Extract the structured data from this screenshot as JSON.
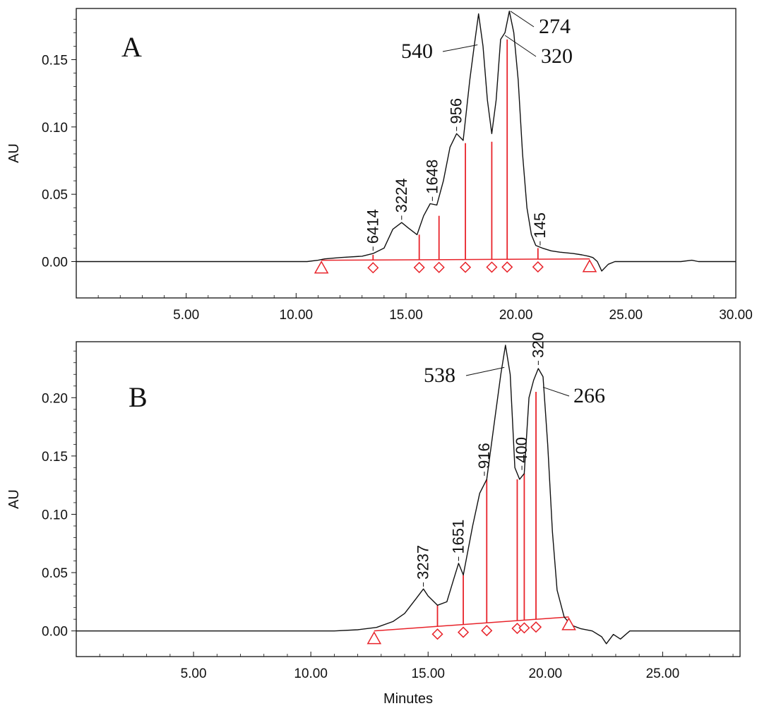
{
  "chart_data": [
    {
      "type": "line",
      "panel": "A",
      "xlabel": "",
      "ylabel": "AU",
      "xlim": [
        0,
        30
      ],
      "ylim": [
        -0.027,
        0.188
      ],
      "xticks": [
        5,
        10,
        15,
        20,
        25,
        30
      ],
      "xtick_labels": [
        "5.00",
        "10.00",
        "15.00",
        "20.00",
        "25.00",
        "30.00"
      ],
      "yticks": [
        0.0,
        0.05,
        0.1,
        0.15
      ],
      "ytick_labels": [
        "0.00",
        "0.05",
        "0.10",
        "0.15"
      ],
      "trace": {
        "x": [
          0,
          10.5,
          11.0,
          11.3,
          12.0,
          13.0,
          13.5,
          14.0,
          14.4,
          14.8,
          15.1,
          15.5,
          15.8,
          16.1,
          16.4,
          16.7,
          17.0,
          17.3,
          17.6,
          17.9,
          18.1,
          18.3,
          18.5,
          18.7,
          18.9,
          19.1,
          19.3,
          19.5,
          19.7,
          19.9,
          20.1,
          20.3,
          20.5,
          20.7,
          20.9,
          21.2,
          21.6,
          22.0,
          22.6,
          23.0,
          23.3,
          23.5,
          23.7,
          23.9,
          24.2,
          24.5,
          27.5,
          28.0,
          28.3,
          30.0
        ],
        "y": [
          0.0,
          0.0,
          0.001,
          0.002,
          0.003,
          0.004,
          0.006,
          0.01,
          0.024,
          0.029,
          0.025,
          0.02,
          0.034,
          0.043,
          0.042,
          0.06,
          0.085,
          0.095,
          0.09,
          0.135,
          0.16,
          0.184,
          0.16,
          0.12,
          0.095,
          0.12,
          0.165,
          0.17,
          0.186,
          0.17,
          0.135,
          0.08,
          0.04,
          0.02,
          0.012,
          0.01,
          0.008,
          0.007,
          0.006,
          0.005,
          0.004,
          0.003,
          0.0,
          -0.007,
          -0.002,
          0.0,
          0.0,
          0.001,
          0.0,
          0.0
        ]
      },
      "baseline": {
        "x": [
          11.15,
          23.35
        ],
        "y": [
          0.001,
          0.002
        ]
      },
      "peak_drop_lines": {
        "x": [
          13.5,
          15.6,
          16.5,
          17.7,
          18.9,
          19.6,
          21.0
        ],
        "y": [
          0.005,
          0.02,
          0.034,
          0.088,
          0.089,
          0.165,
          0.01
        ]
      },
      "integration_marks": [
        {
          "shape": "triangle",
          "x": 11.15
        },
        {
          "shape": "diamond",
          "x": 13.5
        },
        {
          "shape": "diamond",
          "x": 15.6
        },
        {
          "shape": "diamond",
          "x": 16.5
        },
        {
          "shape": "diamond",
          "x": 17.7
        },
        {
          "shape": "diamond",
          "x": 18.9
        },
        {
          "shape": "diamond",
          "x": 19.6
        },
        {
          "shape": "diamond",
          "x": 21.0
        },
        {
          "shape": "triangle",
          "x": 23.35
        }
      ],
      "annotations": [
        {
          "label": "6414",
          "x": 13.5,
          "y": 0.008
        },
        {
          "label": "3224",
          "x": 14.8,
          "y": 0.031
        },
        {
          "label": "1648",
          "x": 16.2,
          "y": 0.045
        },
        {
          "label": "956",
          "x": 17.3,
          "y": 0.097
        },
        {
          "label": "145",
          "x": 21.1,
          "y": 0.012
        },
        {
          "label": "540",
          "x": 16.5,
          "y": 0.16
        },
        {
          "label": "274",
          "x": 21.3,
          "y": 0.176
        },
        {
          "label": "320",
          "x": 21.4,
          "y": 0.156
        }
      ]
    },
    {
      "type": "line",
      "panel": "B",
      "xlabel": "Minutes",
      "ylabel": "AU",
      "xlim": [
        0,
        28.3
      ],
      "ylim": [
        -0.022,
        0.248
      ],
      "xticks": [
        5,
        10,
        15,
        20,
        25
      ],
      "xtick_labels": [
        "5.00",
        "10.00",
        "15.00",
        "20.00",
        "25.00"
      ],
      "yticks": [
        0.0,
        0.05,
        0.1,
        0.15,
        0.2
      ],
      "ytick_labels": [
        "0.00",
        "0.05",
        "0.10",
        "0.15",
        "0.20"
      ],
      "trace": {
        "x": [
          0,
          11.0,
          12.0,
          12.8,
          13.5,
          14.0,
          14.5,
          14.8,
          15.0,
          15.4,
          15.8,
          16.1,
          16.3,
          16.5,
          16.9,
          17.2,
          17.5,
          17.8,
          18.1,
          18.3,
          18.5,
          18.7,
          18.9,
          19.1,
          19.3,
          19.5,
          19.7,
          19.9,
          20.1,
          20.3,
          20.5,
          20.8,
          21.1,
          21.5,
          22.0,
          22.4,
          22.6,
          22.9,
          23.2,
          23.6,
          28.3
        ],
        "y": [
          0.0,
          0.0,
          0.001,
          0.003,
          0.008,
          0.015,
          0.028,
          0.036,
          0.03,
          0.022,
          0.025,
          0.045,
          0.058,
          0.048,
          0.09,
          0.118,
          0.13,
          0.175,
          0.22,
          0.245,
          0.22,
          0.14,
          0.13,
          0.135,
          0.2,
          0.215,
          0.225,
          0.218,
          0.16,
          0.085,
          0.035,
          0.012,
          0.005,
          0.002,
          0.0,
          -0.005,
          -0.011,
          -0.003,
          -0.007,
          0.0,
          0.0
        ]
      },
      "baseline": {
        "x": [
          12.7,
          21.0
        ],
        "y": [
          0.0,
          0.012
        ]
      },
      "peak_drop_lines": {
        "x": [
          15.4,
          16.5,
          17.5,
          18.8,
          19.1,
          19.6
        ],
        "y": [
          0.022,
          0.048,
          0.13,
          0.13,
          0.135,
          0.205
        ]
      },
      "integration_marks": [
        {
          "shape": "triangle",
          "x": 12.7
        },
        {
          "shape": "diamond",
          "x": 15.4
        },
        {
          "shape": "diamond",
          "x": 16.5
        },
        {
          "shape": "diamond",
          "x": 17.5
        },
        {
          "shape": "diamond",
          "x": 18.8
        },
        {
          "shape": "diamond",
          "x": 19.1
        },
        {
          "shape": "diamond",
          "x": 19.6
        },
        {
          "shape": "triangle",
          "x": 21.0
        }
      ],
      "annotations": [
        {
          "label": "3237",
          "x": 14.8,
          "y": 0.038
        },
        {
          "label": "1651",
          "x": 16.3,
          "y": 0.06
        },
        {
          "label": "916",
          "x": 17.4,
          "y": 0.133
        },
        {
          "label": "400",
          "x": 19.0,
          "y": 0.138
        },
        {
          "label": "320",
          "x": 19.7,
          "y": 0.228
        },
        {
          "label": "538",
          "x": 16.6,
          "y": 0.225
        },
        {
          "label": "266",
          "x": 22.1,
          "y": 0.206
        }
      ]
    }
  ]
}
